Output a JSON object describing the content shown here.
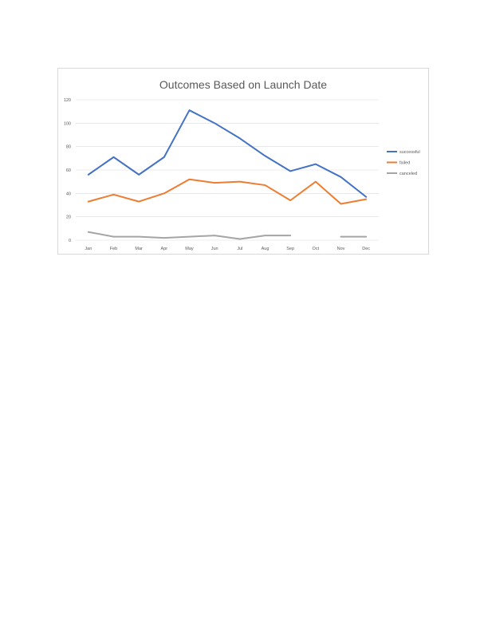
{
  "chart_data": {
    "type": "line",
    "title": "Outcomes Based on Launch Date",
    "xlabel": "",
    "ylabel": "",
    "categories": [
      "Jan",
      "Feb",
      "Mar",
      "Apr",
      "May",
      "Jun",
      "Jul",
      "Aug",
      "Sep",
      "Oct",
      "Nov",
      "Dec"
    ],
    "ylim": [
      0,
      120
    ],
    "yticks": [
      0,
      20,
      40,
      60,
      80,
      100,
      120
    ],
    "grid": true,
    "legend_position": "right",
    "series": [
      {
        "name": "successful",
        "color": "#4472c4",
        "values": [
          56,
          71,
          56,
          71,
          111,
          100,
          87,
          72,
          59,
          65,
          54,
          37
        ]
      },
      {
        "name": "failed",
        "color": "#ed7d31",
        "values": [
          33,
          39,
          33,
          40,
          52,
          49,
          50,
          47,
          34,
          50,
          31,
          35
        ]
      },
      {
        "name": "canceled",
        "color": "#a5a5a5",
        "values": [
          7,
          3,
          3,
          2,
          3,
          4,
          1,
          4,
          4,
          null,
          3,
          3
        ]
      }
    ]
  }
}
